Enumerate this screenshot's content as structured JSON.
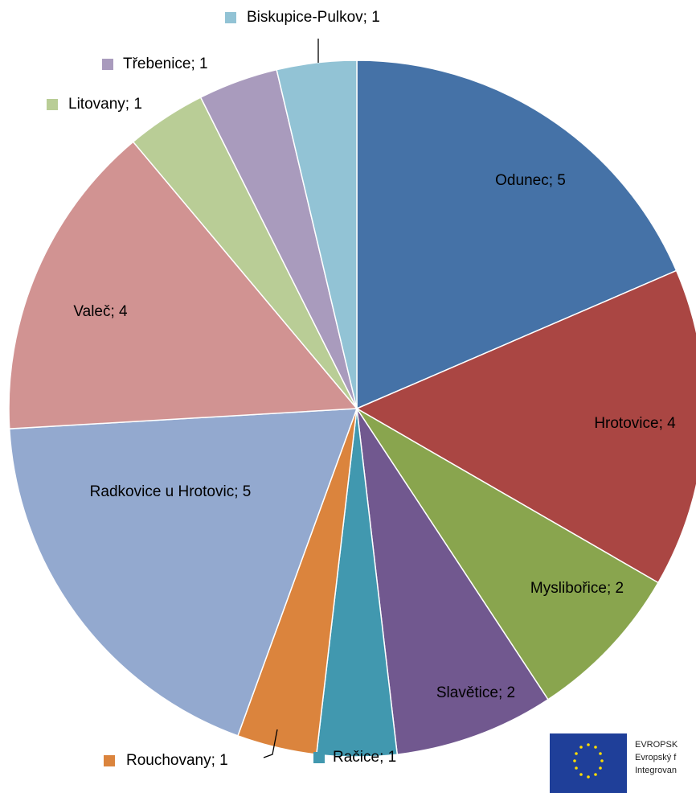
{
  "chart_data": {
    "type": "pie",
    "categories": [
      "Odunec",
      "Hrotovice",
      "Myslibořice",
      "Slavětice",
      "Račice",
      "Rouchovany",
      "Radkovice u Hrotovic",
      "Valeč",
      "Litovany",
      "Třebenice",
      "Biskupice-Pulkov"
    ],
    "values": [
      5,
      4,
      2,
      2,
      1,
      1,
      5,
      4,
      1,
      1,
      1
    ],
    "value_labels": [
      "; 5",
      "; 4",
      "; 2",
      "; 2",
      "; 1",
      "; 1",
      "; 5",
      "; 4",
      "; 1",
      "; 1",
      "; 1"
    ],
    "colors": [
      "#4572a7",
      "#aa4643",
      "#89a54e",
      "#71588f",
      "#4198af",
      "#db843d",
      "#93a9cf",
      "#d19392",
      "#b9cd96",
      "#a99bbd",
      "#92c3d5"
    ]
  },
  "logo": {
    "lines": [
      "EVROPSK",
      "Evropský f",
      "Integrovan"
    ]
  }
}
